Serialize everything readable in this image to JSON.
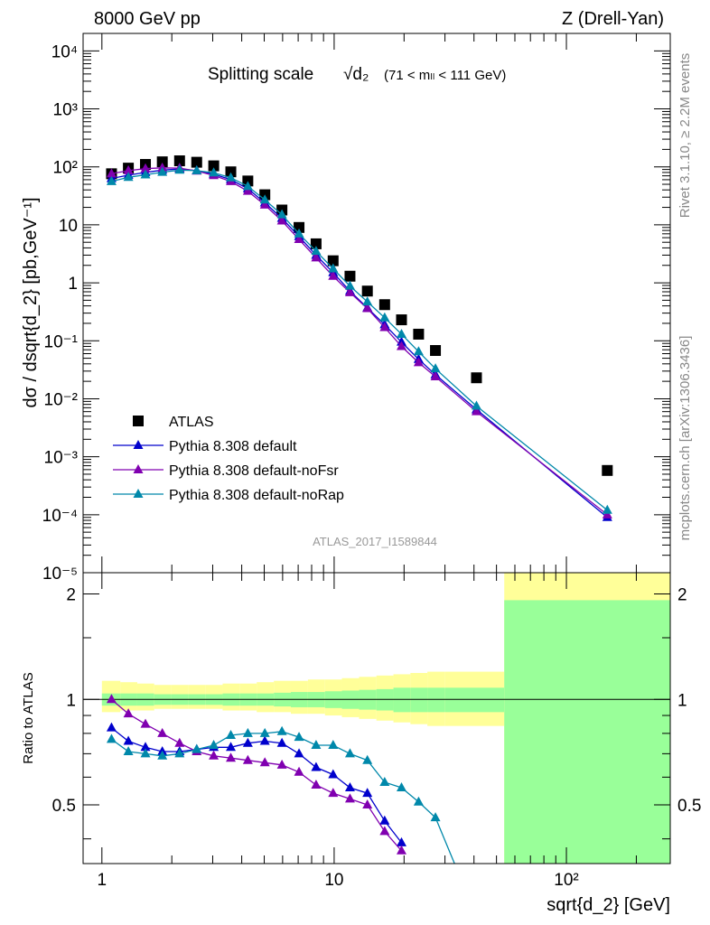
{
  "header": {
    "left": "8000 GeV pp",
    "right": "Z (Drell-Yan)"
  },
  "side_labels": {
    "rivet": "Rivet 3.1.10, ≥ 2.2M events",
    "mcplots": "mcplots.cern.ch [arXiv:1306.3436]"
  },
  "analysis_id": "ATLAS_2017_I1589844",
  "chart_data": [
    {
      "type": "scatter",
      "title": "Splitting scale",
      "title_symbol": "√d₂",
      "title_cut": "(71 < mₗₗ < 111 GeV)",
      "ylabel": "dσ / dsqrt{d_2} [pb,GeV⁻¹]",
      "xscale": "log",
      "yscale": "log",
      "xlim": [
        0.83,
        280
      ],
      "ylim": [
        1e-05,
        20000
      ],
      "yticks": [
        "10⁻⁵",
        "10⁻⁴",
        "10⁻³",
        "10⁻²",
        "10⁻¹",
        "1",
        "10",
        "10²",
        "10³",
        "10⁴"
      ],
      "legend_position": "lower-left",
      "series": [
        {
          "name": "ATLAS",
          "color": "#000000",
          "marker": "square",
          "x": [
            1.1,
            1.3,
            1.54,
            1.82,
            2.16,
            2.56,
            3.03,
            3.59,
            4.25,
            5.03,
            5.96,
            7.06,
            8.36,
            9.9,
            11.7,
            13.9,
            16.5,
            19.5,
            23.1,
            27.3,
            41,
            150
          ],
          "y": [
            76,
            95,
            110,
            122,
            127,
            120,
            104,
            82,
            57,
            33,
            18,
            9,
            4.7,
            2.4,
            1.3,
            0.72,
            0.42,
            0.23,
            0.13,
            0.068,
            0.023,
            0.00058
          ]
        },
        {
          "name": "Pythia 8.308 default",
          "color": "#0000cc",
          "marker": "triangle",
          "x": [
            1.1,
            1.3,
            1.54,
            1.82,
            2.16,
            2.56,
            3.03,
            3.59,
            4.25,
            5.03,
            5.96,
            7.06,
            8.36,
            9.9,
            11.7,
            13.9,
            16.5,
            19.5,
            23.1,
            27.3,
            41,
            150
          ],
          "y": [
            63,
            72,
            80,
            88,
            92,
            86,
            75,
            60,
            42,
            24,
            13,
            6.3,
            3.0,
            1.5,
            0.72,
            0.37,
            0.19,
            0.095,
            0.048,
            0.026,
            0.0065,
            9e-05
          ]
        },
        {
          "name": "Pythia 8.308 default-noFsr",
          "color": "#8000b0",
          "marker": "triangle",
          "x": [
            1.1,
            1.3,
            1.54,
            1.82,
            2.16,
            2.56,
            3.03,
            3.59,
            4.25,
            5.03,
            5.96,
            7.06,
            8.36,
            9.9,
            11.7,
            13.9,
            16.5,
            19.5,
            23.1,
            27.3,
            41,
            150
          ],
          "y": [
            76,
            86,
            93,
            96,
            95,
            85,
            71,
            56,
            38,
            22,
            11.7,
            5.6,
            2.7,
            1.3,
            0.68,
            0.36,
            0.17,
            0.08,
            0.042,
            0.024,
            0.006,
            0.0001
          ]
        },
        {
          "name": "Pythia 8.308 default-noRap",
          "color": "#0088aa",
          "marker": "triangle",
          "x": [
            1.1,
            1.3,
            1.54,
            1.82,
            2.16,
            2.56,
            3.03,
            3.59,
            4.25,
            5.03,
            5.96,
            7.06,
            8.36,
            9.9,
            11.7,
            13.9,
            16.5,
            19.5,
            23.1,
            27.3,
            41,
            150
          ],
          "y": [
            56,
            66,
            73,
            81,
            88,
            86,
            79,
            65,
            46,
            27,
            15,
            7.0,
            3.5,
            1.75,
            0.88,
            0.47,
            0.25,
            0.13,
            0.065,
            0.033,
            0.0075,
            0.00012
          ]
        }
      ]
    },
    {
      "type": "line",
      "ylabel": "Ratio to ATLAS",
      "xlabel": "sqrt{d_2} [GeV]",
      "xscale": "log",
      "xlim": [
        0.83,
        280
      ],
      "ylim": [
        0.34,
        2.3
      ],
      "xticks": [
        "1",
        "10",
        "10²"
      ],
      "yticks": [
        "0.5",
        "1",
        "2"
      ],
      "bands": [
        {
          "edges": [
            1.0,
            1.2,
            1.42,
            1.68,
            1.99,
            2.36,
            2.8,
            3.31,
            3.92,
            4.64,
            5.5,
            6.51,
            7.71,
            9.13,
            10.8,
            12.8,
            15.2,
            18.0,
            21.3,
            25.2,
            29.9,
            54,
            280
          ],
          "stat": [
            0.04,
            0.04,
            0.04,
            0.035,
            0.035,
            0.035,
            0.035,
            0.04,
            0.04,
            0.04,
            0.045,
            0.05,
            0.05,
            0.055,
            0.06,
            0.065,
            0.07,
            0.08,
            0.08,
            0.08,
            0.08,
            0.92
          ],
          "total_up": [
            0.13,
            0.12,
            0.11,
            0.1,
            0.1,
            0.1,
            0.1,
            0.11,
            0.11,
            0.12,
            0.13,
            0.13,
            0.14,
            0.14,
            0.15,
            0.16,
            0.17,
            0.18,
            0.19,
            0.2,
            0.2,
            1.4
          ],
          "total_down": [
            0.08,
            0.07,
            0.07,
            0.06,
            0.06,
            0.06,
            0.06,
            0.07,
            0.07,
            0.08,
            0.08,
            0.09,
            0.09,
            0.1,
            0.11,
            0.12,
            0.13,
            0.14,
            0.15,
            0.16,
            0.16,
            0.7
          ]
        }
      ],
      "series": [
        {
          "name": "Pythia 8.308 default",
          "color": "#0000cc",
          "x": [
            1.1,
            1.3,
            1.54,
            1.82,
            2.16,
            2.56,
            3.03,
            3.59,
            4.25,
            5.03,
            5.96,
            7.06,
            8.36,
            9.9,
            11.7,
            13.9,
            16.5,
            19.5
          ],
          "y": [
            0.83,
            0.76,
            0.73,
            0.71,
            0.71,
            0.72,
            0.73,
            0.73,
            0.75,
            0.76,
            0.75,
            0.7,
            0.64,
            0.61,
            0.56,
            0.54,
            0.45,
            0.39
          ]
        },
        {
          "name": "Pythia 8.308 default-noFsr",
          "color": "#8000b0",
          "x": [
            1.1,
            1.3,
            1.54,
            1.82,
            2.16,
            2.56,
            3.03,
            3.59,
            4.25,
            5.03,
            5.96,
            7.06,
            8.36,
            9.9,
            11.7,
            13.9,
            16.5,
            19.5
          ],
          "y": [
            1.0,
            0.91,
            0.85,
            0.8,
            0.75,
            0.71,
            0.69,
            0.68,
            0.67,
            0.66,
            0.65,
            0.62,
            0.57,
            0.54,
            0.52,
            0.5,
            0.42,
            0.37
          ]
        },
        {
          "name": "Pythia 8.308 default-noRap",
          "color": "#0088aa",
          "x": [
            1.1,
            1.3,
            1.54,
            1.82,
            2.16,
            2.56,
            3.03,
            3.59,
            4.25,
            5.03,
            5.96,
            7.06,
            8.36,
            9.9,
            11.7,
            13.9,
            16.5,
            19.5,
            23.1,
            27.3,
            33
          ],
          "y": [
            0.77,
            0.71,
            0.7,
            0.69,
            0.7,
            0.72,
            0.74,
            0.79,
            0.8,
            0.8,
            0.81,
            0.78,
            0.74,
            0.74,
            0.7,
            0.67,
            0.58,
            0.56,
            0.51,
            0.46,
            0.34
          ]
        }
      ]
    }
  ]
}
